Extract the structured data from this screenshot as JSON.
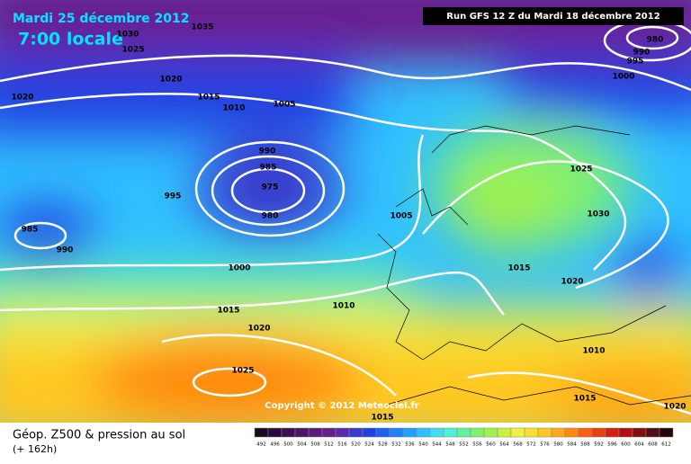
{
  "header": {
    "date": "Mardi 25 décembre 2012",
    "time": "7:00 locale",
    "run": "Run GFS 12 Z du Mardi 18 décembre 2012"
  },
  "copyright": "Copyright © 2012 Meteociel.fr",
  "footer": {
    "title": "Géop. Z500 & pression au sol",
    "lead": "(+ 162h)"
  },
  "isobar_labels": [
    1035,
    1030,
    1025,
    1020,
    1020,
    1015,
    1010,
    1005,
    990,
    985,
    975,
    980,
    995,
    985,
    990,
    1000,
    1015,
    1020,
    1025,
    1010,
    1005,
    1015,
    1020,
    1025,
    1030,
    980,
    990,
    995,
    1000,
    1010,
    1015,
    1020,
    1015
  ],
  "colorbar": {
    "labels": [
      492,
      496,
      500,
      504,
      508,
      512,
      516,
      520,
      524,
      528,
      532,
      536,
      540,
      544,
      548,
      552,
      556,
      560,
      564,
      568,
      572,
      576,
      580,
      584,
      588,
      592,
      596,
      600,
      604,
      608,
      612
    ],
    "colors": [
      "#1a0a1e",
      "#2a0a3a",
      "#3a1050",
      "#4a1565",
      "#5a1a7a",
      "#6a1e8e",
      "#5a2aa8",
      "#3a3acc",
      "#2040e0",
      "#1e60f0",
      "#2080f8",
      "#20a0ff",
      "#30c0ff",
      "#40dcf0",
      "#50f0d8",
      "#60f0a0",
      "#80f070",
      "#a0f050",
      "#c8f040",
      "#f0f040",
      "#f8e030",
      "#ffc820",
      "#ffa818",
      "#ff8810",
      "#f86010",
      "#e84010",
      "#d02010",
      "#b01010",
      "#801010",
      "#501010",
      "#200808"
    ]
  }
}
